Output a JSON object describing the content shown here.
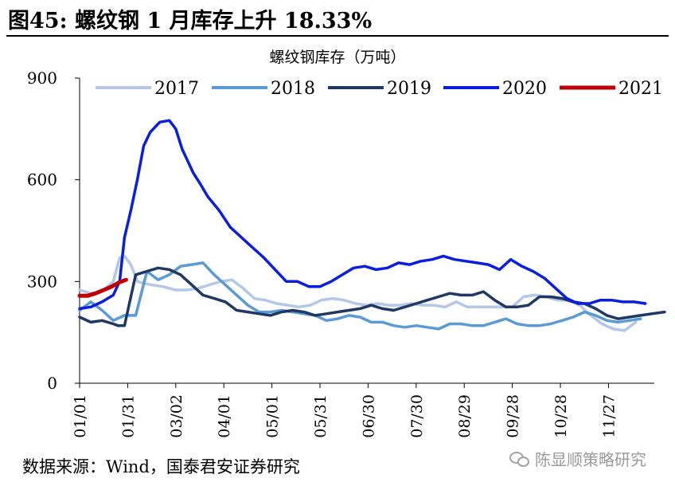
{
  "figure": {
    "title": "图45: 螺纹钢 1 月库存上升 18.33%",
    "source": "数据来源：Wind，国泰君安证券研究",
    "watermark": "陈显顺策略研究"
  },
  "chart_data": {
    "type": "line",
    "title": "螺纹钢库存（万吨）",
    "xlabel": "",
    "ylabel": "",
    "ylim": [
      0,
      900
    ],
    "yticks": [
      0,
      300,
      600,
      900
    ],
    "xticks": [
      "01/01",
      "01/31",
      "03/02",
      "04/01",
      "05/01",
      "05/31",
      "06/30",
      "07/30",
      "08/29",
      "09/28",
      "10/28",
      "11/27"
    ],
    "x_day_range": [
      0,
      365
    ],
    "legend_position": "top",
    "grid": false,
    "series": [
      {
        "name": "2017",
        "color": "#b4c7e7",
        "x": [
          0,
          7,
          14,
          21,
          25,
          28,
          32,
          36,
          40,
          45,
          52,
          60,
          67,
          74,
          81,
          88,
          95,
          102,
          109,
          116,
          123,
          130,
          137,
          144,
          151,
          158,
          165,
          172,
          179,
          186,
          193,
          200,
          207,
          214,
          221,
          228,
          235,
          242,
          249,
          256,
          263,
          270,
          277,
          284,
          291,
          298,
          305,
          312,
          319,
          326,
          333,
          340,
          347
        ],
        "y": [
          275,
          265,
          270,
          300,
          370,
          375,
          350,
          300,
          295,
          290,
          285,
          275,
          275,
          280,
          290,
          300,
          305,
          280,
          250,
          245,
          235,
          230,
          225,
          230,
          245,
          250,
          245,
          235,
          230,
          235,
          230,
          230,
          235,
          230,
          230,
          225,
          240,
          225,
          225,
          225,
          225,
          225,
          255,
          260,
          255,
          245,
          245,
          230,
          200,
          175,
          160,
          155,
          180
        ]
      },
      {
        "name": "2018",
        "color": "#5b9bd5",
        "x": [
          0,
          7,
          14,
          21,
          28,
          35,
          42,
          49,
          56,
          63,
          70,
          77,
          84,
          91,
          98,
          105,
          112,
          119,
          126,
          133,
          140,
          147,
          154,
          161,
          168,
          175,
          182,
          189,
          196,
          203,
          210,
          217,
          224,
          231,
          238,
          245,
          252,
          259,
          266,
          273,
          280,
          287,
          294,
          301,
          308,
          315,
          322,
          329,
          336,
          343,
          350
        ],
        "y": [
          215,
          240,
          215,
          185,
          200,
          200,
          330,
          305,
          320,
          345,
          350,
          355,
          320,
          290,
          260,
          230,
          210,
          210,
          215,
          210,
          205,
          200,
          185,
          190,
          200,
          195,
          180,
          180,
          170,
          165,
          170,
          165,
          160,
          175,
          175,
          170,
          170,
          180,
          190,
          175,
          170,
          170,
          175,
          185,
          195,
          210,
          200,
          185,
          180,
          185,
          190
        ]
      },
      {
        "name": "2019",
        "color": "#1f3864",
        "x": [
          0,
          7,
          14,
          21,
          24,
          28,
          35,
          42,
          49,
          56,
          63,
          70,
          77,
          84,
          91,
          98,
          105,
          112,
          119,
          126,
          133,
          140,
          147,
          154,
          161,
          168,
          175,
          182,
          189,
          196,
          203,
          210,
          217,
          224,
          231,
          238,
          245,
          252,
          259,
          266,
          273,
          280,
          287,
          294,
          301,
          308,
          315,
          322,
          329,
          336,
          343,
          350,
          357,
          365
        ],
        "y": [
          195,
          180,
          185,
          175,
          170,
          170,
          320,
          330,
          340,
          335,
          320,
          290,
          260,
          250,
          240,
          215,
          210,
          205,
          200,
          210,
          215,
          210,
          200,
          205,
          210,
          215,
          220,
          230,
          220,
          215,
          225,
          235,
          245,
          255,
          265,
          260,
          260,
          270,
          245,
          225,
          225,
          230,
          255,
          255,
          250,
          240,
          235,
          220,
          200,
          190,
          195,
          200,
          205,
          210
        ]
      },
      {
        "name": "2020",
        "color": "#0a1ee0",
        "x": [
          0,
          7,
          14,
          21,
          25,
          28,
          32,
          36,
          40,
          44,
          50,
          56,
          60,
          64,
          67,
          71,
          75,
          80,
          87,
          94,
          101,
          108,
          115,
          122,
          129,
          136,
          143,
          150,
          157,
          164,
          171,
          178,
          185,
          192,
          199,
          206,
          213,
          220,
          227,
          234,
          241,
          248,
          255,
          262,
          269,
          276,
          283,
          290,
          297,
          304,
          311,
          318,
          325,
          332,
          339,
          346,
          353
        ],
        "y": [
          220,
          225,
          240,
          260,
          300,
          430,
          510,
          600,
          700,
          740,
          770,
          775,
          750,
          690,
          660,
          620,
          590,
          550,
          510,
          460,
          430,
          400,
          370,
          335,
          300,
          300,
          285,
          285,
          300,
          320,
          340,
          345,
          335,
          340,
          355,
          350,
          360,
          365,
          375,
          365,
          360,
          355,
          350,
          335,
          365,
          345,
          330,
          310,
          280,
          250,
          235,
          235,
          245,
          245,
          240,
          240,
          235
        ]
      },
      {
        "name": "2021",
        "color": "#c00000",
        "x": [
          0,
          5,
          10,
          15,
          20,
          25,
          29
        ],
        "y": [
          258,
          258,
          265,
          275,
          285,
          298,
          305
        ]
      }
    ]
  }
}
